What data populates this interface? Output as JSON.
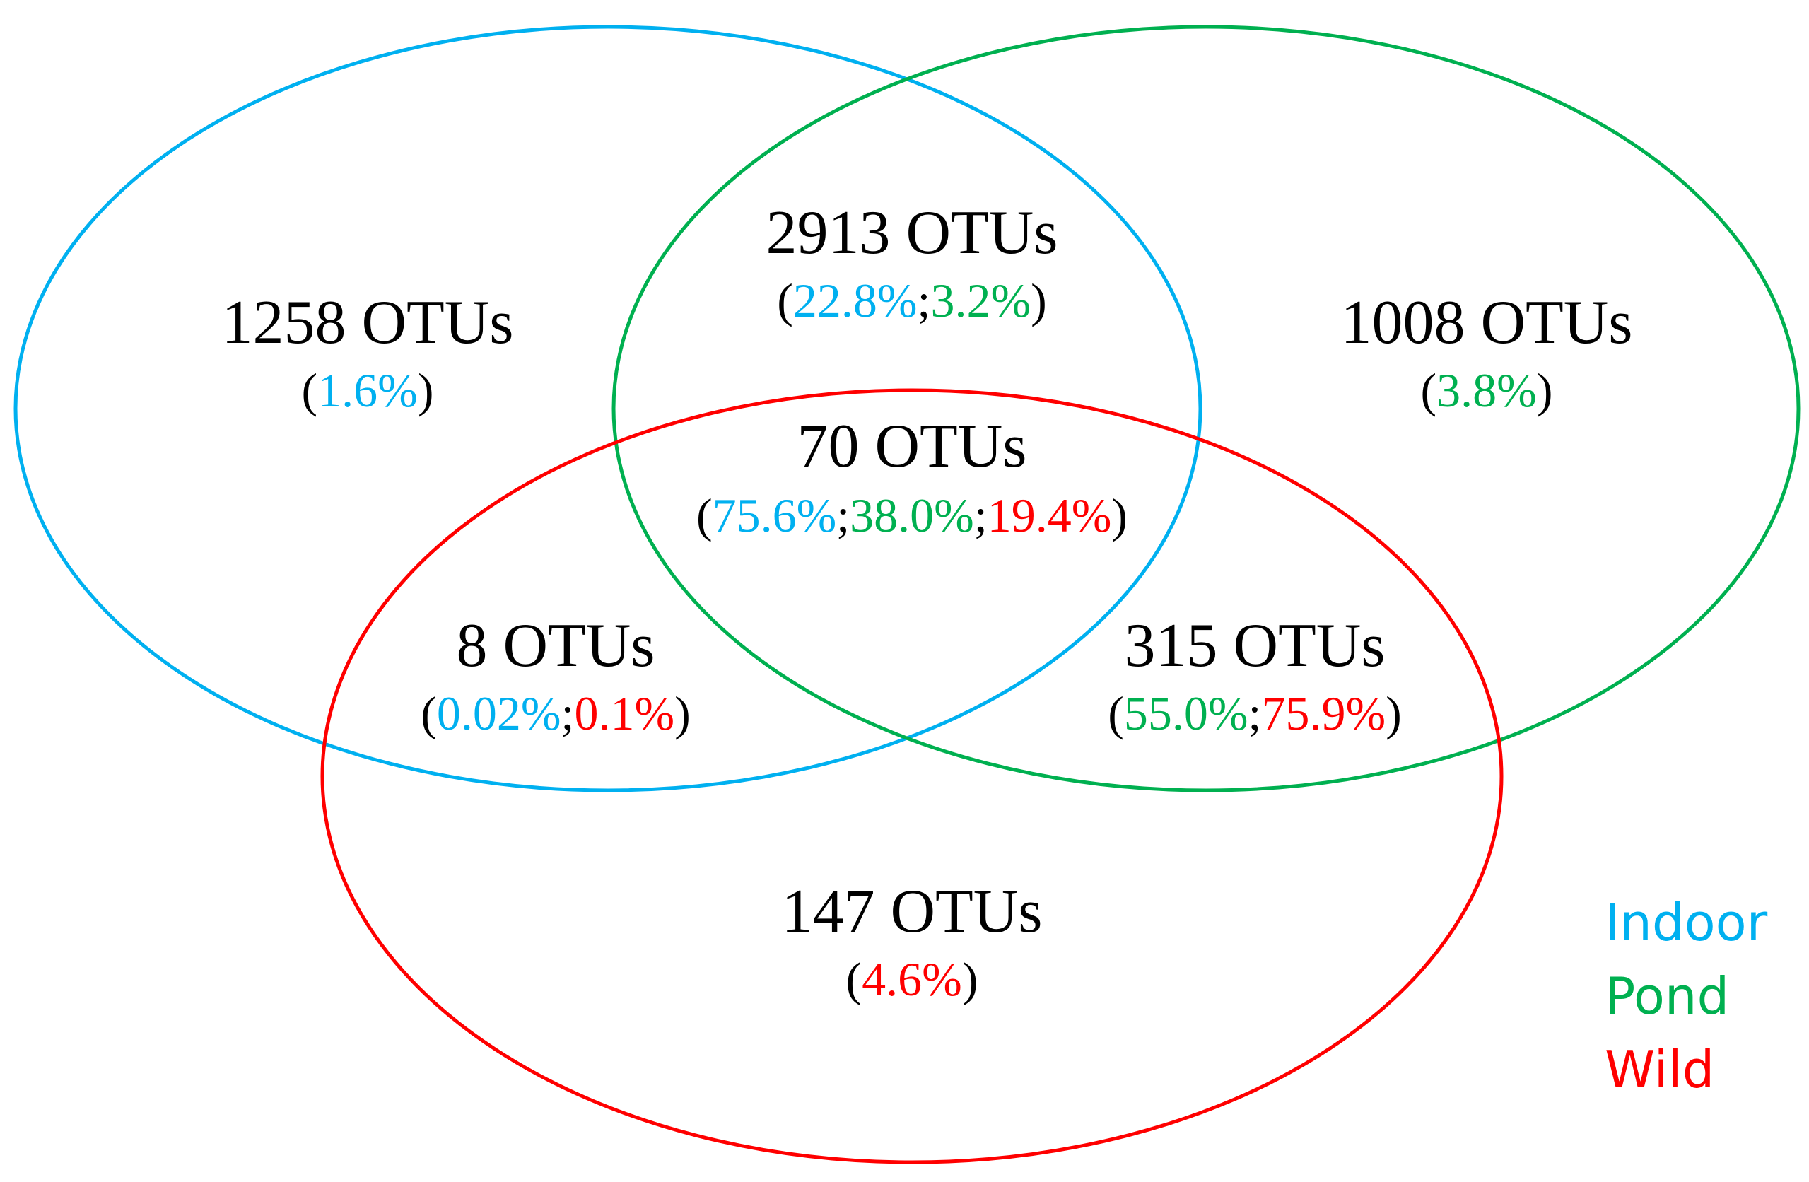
{
  "colors": {
    "indoor": "#00b0f0",
    "pond": "#00b050",
    "wild": "#ff0000",
    "text": "#000000"
  },
  "sets": [
    {
      "key": "indoor",
      "name": "Indoor",
      "color": "#00b0f0"
    },
    {
      "key": "pond",
      "name": "Pond",
      "color": "#00b050"
    },
    {
      "key": "wild",
      "name": "Wild",
      "color": "#ff0000"
    }
  ],
  "regions": {
    "indoor_only": {
      "count": "1258 OTUs",
      "pcts": [
        "1.6%"
      ],
      "pct_colors": [
        "#00b0f0"
      ]
    },
    "pond_only": {
      "count": "1008 OTUs",
      "pcts": [
        "3.8%"
      ],
      "pct_colors": [
        "#00b050"
      ]
    },
    "wild_only": {
      "count": "147 OTUs",
      "pcts": [
        "4.6%"
      ],
      "pct_colors": [
        "#ff0000"
      ]
    },
    "indoor_pond": {
      "count": "2913 OTUs",
      "pcts": [
        "22.8%",
        "3.2%"
      ],
      "pct_colors": [
        "#00b0f0",
        "#00b050"
      ]
    },
    "indoor_wild": {
      "count": "8 OTUs",
      "pcts": [
        "0.02%",
        "0.1%"
      ],
      "pct_colors": [
        "#00b0f0",
        "#ff0000"
      ]
    },
    "pond_wild": {
      "count": "315 OTUs",
      "pcts": [
        "55.0%",
        "75.9%"
      ],
      "pct_colors": [
        "#00b050",
        "#ff0000"
      ]
    },
    "all_three": {
      "count": "70 OTUs",
      "pcts": [
        "75.6%",
        "38.0%",
        "19.4%"
      ],
      "pct_colors": [
        "#00b0f0",
        "#00b050",
        "#ff0000"
      ]
    }
  }
}
